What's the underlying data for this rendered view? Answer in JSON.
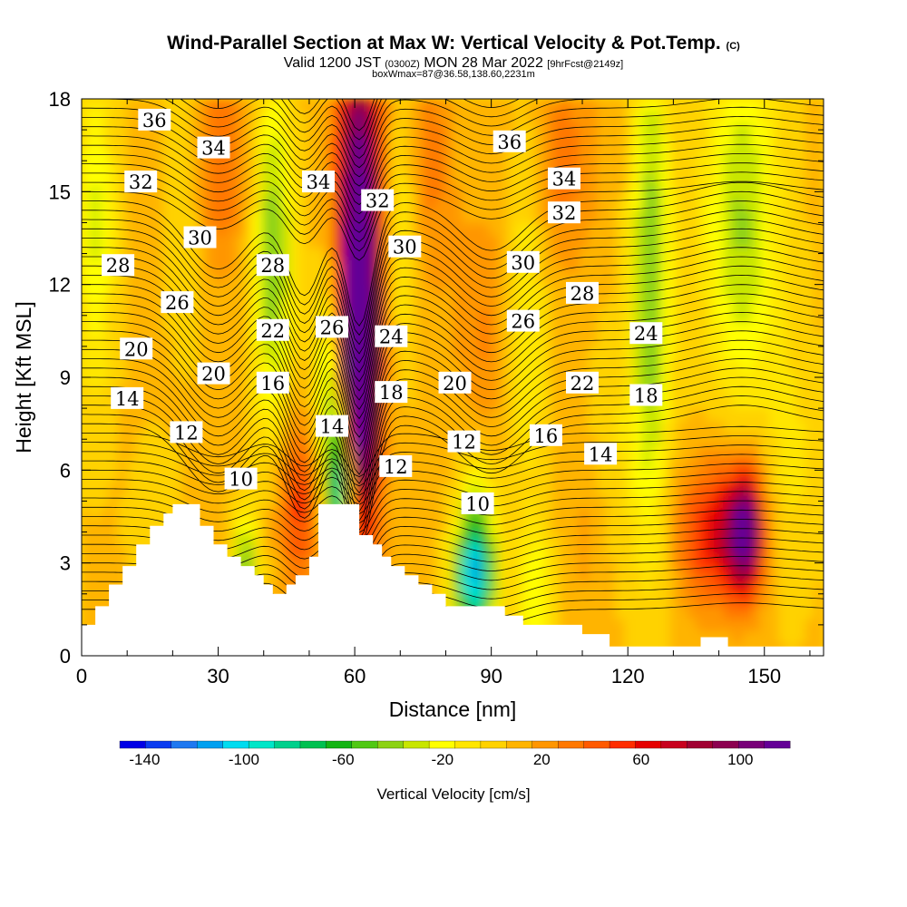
{
  "title": {
    "main": "Wind-Parallel Section at Max W: Vertical Velocity & Pot.Temp.",
    "copyright": "(C)",
    "valid_prefix": "Valid 1200 JST",
    "valid_utc": "(0300Z)",
    "valid_date": "MON 28 Mar 2022",
    "forecast": "[9hrFcst@2149z]",
    "boxwmax": "boxWmax=87@36.58,138.60,2231m"
  },
  "chart_data": {
    "type": "heatmap",
    "xlabel": "Distance [nm]",
    "ylabel": "Height [Kft MSL]",
    "xlim": [
      0,
      163
    ],
    "ylim": [
      0,
      18
    ],
    "xticks": [
      0,
      30,
      60,
      90,
      120,
      150
    ],
    "yticks": [
      0,
      3,
      6,
      9,
      12,
      15,
      18
    ],
    "colorbar": {
      "label": "Vertical Velocity [cm/s]",
      "ticks": [
        -140,
        -100,
        -60,
        -20,
        20,
        60,
        100
      ],
      "range": [
        -150,
        120
      ],
      "colors": [
        "#0000e6",
        "#0a3cf0",
        "#1e78f0",
        "#00a0f0",
        "#00dcf0",
        "#00e6c8",
        "#00d08c",
        "#00c050",
        "#14b414",
        "#50c814",
        "#8cd214",
        "#c8e600",
        "#ffff00",
        "#ffe600",
        "#ffd200",
        "#ffb400",
        "#ff9600",
        "#ff7800",
        "#ff5a00",
        "#ff2d00",
        "#e60000",
        "#c8001e",
        "#a00032",
        "#8c0050",
        "#780078",
        "#640096"
      ]
    },
    "theta_contour_labels": [
      {
        "value": "36",
        "x": 16,
        "y": 17.3
      },
      {
        "value": "34",
        "x": 29,
        "y": 16.4
      },
      {
        "value": "32",
        "x": 13,
        "y": 15.3
      },
      {
        "value": "30",
        "x": 26,
        "y": 13.5
      },
      {
        "value": "28",
        "x": 8,
        "y": 12.6
      },
      {
        "value": "26",
        "x": 21,
        "y": 11.4
      },
      {
        "value": "20",
        "x": 12,
        "y": 9.9
      },
      {
        "value": "14",
        "x": 10,
        "y": 8.3
      },
      {
        "value": "12",
        "x": 23,
        "y": 7.2
      },
      {
        "value": "20",
        "x": 29,
        "y": 9.1
      },
      {
        "value": "22",
        "x": 42,
        "y": 10.5
      },
      {
        "value": "16",
        "x": 42,
        "y": 8.8
      },
      {
        "value": "10",
        "x": 35,
        "y": 5.7
      },
      {
        "value": "28",
        "x": 42,
        "y": 12.6
      },
      {
        "value": "34",
        "x": 52,
        "y": 15.3
      },
      {
        "value": "32",
        "x": 65,
        "y": 14.7
      },
      {
        "value": "30",
        "x": 71,
        "y": 13.2
      },
      {
        "value": "26",
        "x": 55,
        "y": 10.6
      },
      {
        "value": "24",
        "x": 68,
        "y": 10.3
      },
      {
        "value": "18",
        "x": 68,
        "y": 8.5
      },
      {
        "value": "14",
        "x": 55,
        "y": 7.4
      },
      {
        "value": "12",
        "x": 69,
        "y": 6.1
      },
      {
        "value": "20",
        "x": 82,
        "y": 8.8
      },
      {
        "value": "12",
        "x": 84,
        "y": 6.9
      },
      {
        "value": "10",
        "x": 87,
        "y": 4.9
      },
      {
        "value": "36",
        "x": 94,
        "y": 16.6
      },
      {
        "value": "34",
        "x": 106,
        "y": 15.4
      },
      {
        "value": "32",
        "x": 106,
        "y": 14.3
      },
      {
        "value": "30",
        "x": 97,
        "y": 12.7
      },
      {
        "value": "28",
        "x": 110,
        "y": 11.7
      },
      {
        "value": "26",
        "x": 97,
        "y": 10.8
      },
      {
        "value": "24",
        "x": 124,
        "y": 10.4
      },
      {
        "value": "22",
        "x": 110,
        "y": 8.8
      },
      {
        "value": "18",
        "x": 124,
        "y": 8.4
      },
      {
        "value": "16",
        "x": 102,
        "y": 7.1
      },
      {
        "value": "14",
        "x": 114,
        "y": 6.5
      }
    ],
    "terrain_kft": [
      [
        0,
        1.0
      ],
      [
        3,
        1.0
      ],
      [
        3,
        1.6
      ],
      [
        6,
        1.6
      ],
      [
        6,
        2.3
      ],
      [
        9,
        2.3
      ],
      [
        9,
        2.9
      ],
      [
        12,
        2.9
      ],
      [
        12,
        3.6
      ],
      [
        15,
        3.6
      ],
      [
        15,
        4.2
      ],
      [
        18,
        4.2
      ],
      [
        18,
        4.6
      ],
      [
        20,
        4.6
      ],
      [
        20,
        4.9
      ],
      [
        26,
        4.9
      ],
      [
        26,
        4.2
      ],
      [
        29,
        4.2
      ],
      [
        29,
        3.6
      ],
      [
        32,
        3.6
      ],
      [
        32,
        3.2
      ],
      [
        35,
        3.2
      ],
      [
        35,
        2.9
      ],
      [
        38,
        2.9
      ],
      [
        38,
        2.6
      ],
      [
        40,
        2.6
      ],
      [
        40,
        2.3
      ],
      [
        42,
        2.3
      ],
      [
        42,
        2.0
      ],
      [
        45,
        2.0
      ],
      [
        45,
        2.3
      ],
      [
        47,
        2.3
      ],
      [
        47,
        2.6
      ],
      [
        50,
        2.6
      ],
      [
        50,
        3.2
      ],
      [
        52,
        3.2
      ],
      [
        52,
        4.9
      ],
      [
        61,
        4.9
      ],
      [
        61,
        3.9
      ],
      [
        64,
        3.9
      ],
      [
        64,
        3.6
      ],
      [
        66,
        3.6
      ],
      [
        66,
        3.2
      ],
      [
        68,
        3.2
      ],
      [
        68,
        2.9
      ],
      [
        71,
        2.9
      ],
      [
        71,
        2.6
      ],
      [
        74,
        2.6
      ],
      [
        74,
        2.3
      ],
      [
        77,
        2.3
      ],
      [
        77,
        2.0
      ],
      [
        80,
        2.0
      ],
      [
        80,
        1.6
      ],
      [
        93,
        1.6
      ],
      [
        93,
        1.3
      ],
      [
        97,
        1.3
      ],
      [
        97,
        1.0
      ],
      [
        110,
        1.0
      ],
      [
        110,
        0.7
      ],
      [
        116,
        0.7
      ],
      [
        116,
        0.3
      ],
      [
        136,
        0.3
      ],
      [
        136,
        0.6
      ],
      [
        142,
        0.6
      ],
      [
        142,
        0.3
      ],
      [
        163,
        0.3
      ],
      [
        163,
        0
      ]
    ]
  }
}
